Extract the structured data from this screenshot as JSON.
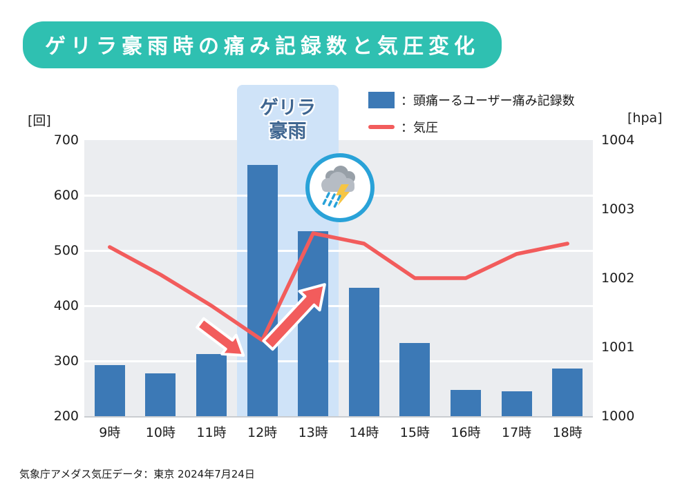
{
  "title": "ゲリラ豪雨時の痛み記録数と気圧変化",
  "legend": {
    "bars_label": "：頭痛ーるユーザー痛み記録数",
    "line_label": "：気圧"
  },
  "axes": {
    "left_unit": "[回]",
    "right_unit": "[hpa]",
    "left_ticks": [
      700,
      600,
      500,
      400,
      300,
      200
    ],
    "right_ticks": [
      1004,
      1003,
      1002,
      1001,
      1000
    ]
  },
  "annotation": {
    "band_label_line1": "ゲリラ",
    "band_label_line2": "豪雨"
  },
  "footer": "気象庁アメダス気圧データ：東京 2024年7月24日",
  "colors": {
    "title_bg": "#2fc0b1",
    "bar": "#3c79b6",
    "line": "#f25c5c",
    "band": "#cfe3f8",
    "plot_bg": "#ebedf0",
    "icon_border": "#29a2d8",
    "label_blue": "#3e6590"
  },
  "chart_data": {
    "type": "bar+line",
    "title": "ゲリラ豪雨時の痛み記録数と気圧変化",
    "categories": [
      "9時",
      "10時",
      "11時",
      "12時",
      "13時",
      "14時",
      "15時",
      "16時",
      "17時",
      "18時"
    ],
    "series": [
      {
        "name": "頭痛ーるユーザー痛み記録数",
        "type": "bar",
        "axis": "left",
        "values": [
          293,
          278,
          313,
          655,
          535,
          432,
          332,
          247,
          245,
          286
        ]
      },
      {
        "name": "気圧",
        "type": "line",
        "axis": "right",
        "values": [
          1002.45,
          1002.05,
          1001.6,
          1001.1,
          1002.65,
          1002.5,
          1002.0,
          1002.0,
          1002.35,
          1002.5
        ]
      }
    ],
    "left_axis": {
      "label": "[回]",
      "min": 200,
      "max": 700
    },
    "right_axis": {
      "label": "[hpa]",
      "min": 1000,
      "max": 1004
    },
    "grid": true,
    "legend_position": "top",
    "highlight_band": {
      "categories": [
        "12時",
        "13時"
      ],
      "label": "ゲリラ豪雨"
    }
  }
}
